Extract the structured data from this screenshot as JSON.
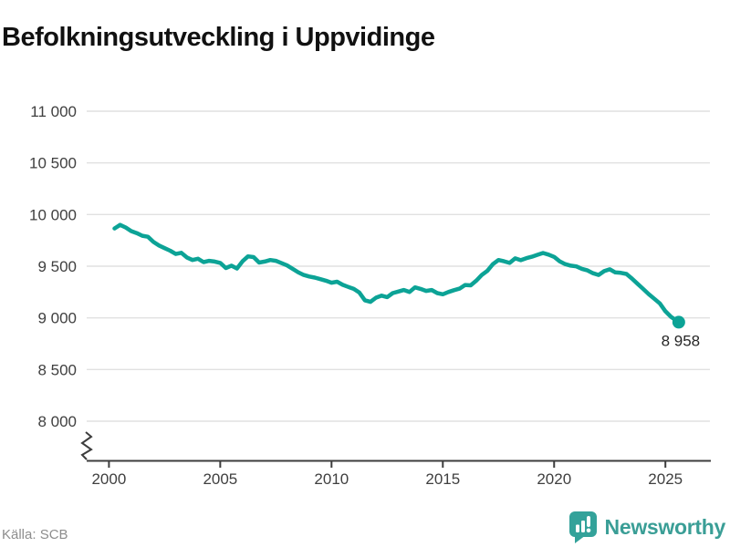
{
  "title": "Befolkningsutveckling i Uppvidinge",
  "source": "Källa: SCB",
  "brand": {
    "name": "Newsworthy",
    "icon": "bar-chart-speech-bubble-icon",
    "color": "#33a29a"
  },
  "colors": {
    "line": "#0ca396",
    "grid": "#e1e1e1",
    "axis": "#3d3d3d",
    "tick_text": "#3f3f3f",
    "title_text": "#111111",
    "end_label_text": "#262626"
  },
  "chart_data": {
    "type": "line",
    "title": "Befolkningsutveckling i Uppvidinge",
    "xlabel": "",
    "ylabel": "",
    "ylim": [
      8000,
      11000
    ],
    "y_axis_break": true,
    "grid": "horizontal",
    "legend": "none",
    "y_ticks": [
      {
        "value": 11000,
        "label": "11 000"
      },
      {
        "value": 10500,
        "label": "10 500"
      },
      {
        "value": 10000,
        "label": "10 000"
      },
      {
        "value": 9500,
        "label": "9 500"
      },
      {
        "value": 9000,
        "label": "9 000"
      },
      {
        "value": 8500,
        "label": "8 500"
      },
      {
        "value": 8000,
        "label": "8 000"
      }
    ],
    "x_ticks": [
      {
        "value": 2000,
        "label": "2000"
      },
      {
        "value": 2005,
        "label": "2005"
      },
      {
        "value": 2010,
        "label": "2010"
      },
      {
        "value": 2015,
        "label": "2015"
      },
      {
        "value": 2020,
        "label": "2020"
      },
      {
        "value": 2025,
        "label": "2025"
      }
    ],
    "end_label": "8 958",
    "end_value": 8958,
    "series": [
      {
        "name": "Befolkning i Uppvidinge",
        "points": [
          [
            2000.25,
            9865
          ],
          [
            2000.5,
            9900
          ],
          [
            2000.75,
            9875
          ],
          [
            2001.0,
            9840
          ],
          [
            2001.25,
            9820
          ],
          [
            2001.5,
            9795
          ],
          [
            2001.75,
            9785
          ],
          [
            2002.0,
            9735
          ],
          [
            2002.25,
            9700
          ],
          [
            2002.5,
            9675
          ],
          [
            2002.75,
            9650
          ],
          [
            2003.0,
            9618
          ],
          [
            2003.25,
            9630
          ],
          [
            2003.5,
            9585
          ],
          [
            2003.75,
            9560
          ],
          [
            2004.0,
            9572
          ],
          [
            2004.25,
            9540
          ],
          [
            2004.5,
            9552
          ],
          [
            2004.75,
            9545
          ],
          [
            2005.0,
            9532
          ],
          [
            2005.25,
            9482
          ],
          [
            2005.5,
            9505
          ],
          [
            2005.75,
            9478
          ],
          [
            2006.0,
            9548
          ],
          [
            2006.25,
            9595
          ],
          [
            2006.5,
            9588
          ],
          [
            2006.75,
            9535
          ],
          [
            2007.0,
            9545
          ],
          [
            2007.25,
            9560
          ],
          [
            2007.5,
            9552
          ],
          [
            2007.75,
            9530
          ],
          [
            2008.0,
            9508
          ],
          [
            2008.25,
            9475
          ],
          [
            2008.5,
            9442
          ],
          [
            2008.75,
            9415
          ],
          [
            2009.0,
            9400
          ],
          [
            2009.25,
            9390
          ],
          [
            2009.5,
            9375
          ],
          [
            2009.75,
            9360
          ],
          [
            2010.0,
            9340
          ],
          [
            2010.25,
            9350
          ],
          [
            2010.5,
            9320
          ],
          [
            2010.75,
            9300
          ],
          [
            2011.0,
            9280
          ],
          [
            2011.25,
            9245
          ],
          [
            2011.5,
            9170
          ],
          [
            2011.75,
            9155
          ],
          [
            2012.0,
            9196
          ],
          [
            2012.25,
            9215
          ],
          [
            2012.5,
            9201
          ],
          [
            2012.75,
            9240
          ],
          [
            2013.0,
            9255
          ],
          [
            2013.25,
            9270
          ],
          [
            2013.5,
            9250
          ],
          [
            2013.75,
            9295
          ],
          [
            2014.0,
            9280
          ],
          [
            2014.25,
            9261
          ],
          [
            2014.5,
            9270
          ],
          [
            2014.75,
            9240
          ],
          [
            2015.0,
            9228
          ],
          [
            2015.25,
            9250
          ],
          [
            2015.5,
            9268
          ],
          [
            2015.75,
            9283
          ],
          [
            2016.0,
            9318
          ],
          [
            2016.25,
            9315
          ],
          [
            2016.5,
            9360
          ],
          [
            2016.75,
            9415
          ],
          [
            2017.0,
            9455
          ],
          [
            2017.25,
            9520
          ],
          [
            2017.5,
            9560
          ],
          [
            2017.75,
            9548
          ],
          [
            2018.0,
            9532
          ],
          [
            2018.25,
            9576
          ],
          [
            2018.5,
            9558
          ],
          [
            2018.75,
            9578
          ],
          [
            2019.0,
            9592
          ],
          [
            2019.25,
            9610
          ],
          [
            2019.5,
            9628
          ],
          [
            2019.75,
            9612
          ],
          [
            2020.0,
            9590
          ],
          [
            2020.25,
            9548
          ],
          [
            2020.5,
            9520
          ],
          [
            2020.75,
            9505
          ],
          [
            2021.0,
            9498
          ],
          [
            2021.25,
            9474
          ],
          [
            2021.5,
            9459
          ],
          [
            2021.75,
            9432
          ],
          [
            2022.0,
            9415
          ],
          [
            2022.25,
            9452
          ],
          [
            2022.5,
            9470
          ],
          [
            2022.75,
            9440
          ],
          [
            2023.0,
            9436
          ],
          [
            2023.25,
            9425
          ],
          [
            2023.5,
            9380
          ],
          [
            2023.75,
            9330
          ],
          [
            2024.0,
            9280
          ],
          [
            2024.25,
            9230
          ],
          [
            2024.5,
            9185
          ],
          [
            2024.75,
            9140
          ],
          [
            2025.0,
            9064
          ],
          [
            2025.25,
            9010
          ],
          [
            2025.6,
            8958
          ]
        ]
      }
    ]
  }
}
